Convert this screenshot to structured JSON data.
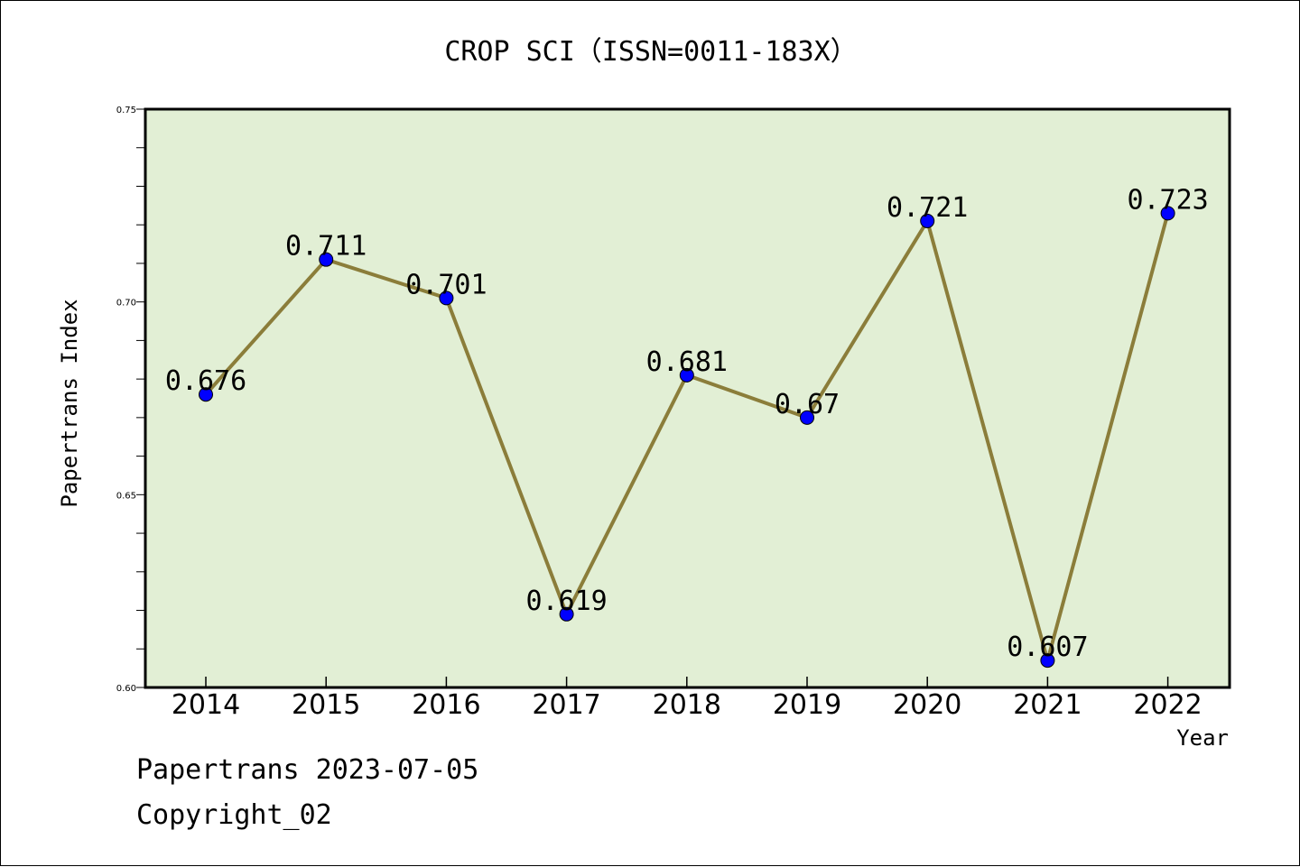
{
  "footer": {
    "line1": "Papertrans 2023-07-05",
    "line2": "Copyright_02"
  },
  "colors": {
    "plot_bg": "#e2efd5",
    "line": "#8b7d3a",
    "marker": "#0000ff",
    "axis": "#000000"
  },
  "chart_data": {
    "type": "line",
    "title": "CROP SCI（ISSN=0011-183X）",
    "xlabel": "Year",
    "ylabel": "Papertrans Index",
    "categories": [
      "2014",
      "2015",
      "2016",
      "2017",
      "2018",
      "2019",
      "2020",
      "2021",
      "2022"
    ],
    "series": [
      {
        "values": [
          0.676,
          0.711,
          0.701,
          0.619,
          0.681,
          0.67,
          0.721,
          0.607,
          0.723
        ],
        "data_labels": [
          "0.676",
          "0.711",
          "0.701",
          "0.619",
          "0.681",
          "0.67",
          "0.721",
          "0.607",
          "0.723"
        ]
      }
    ],
    "ylim": [
      0.6,
      0.75
    ],
    "y_ticks": [
      "0.60",
      "0.65",
      "0.70",
      "0.75"
    ],
    "y_tick_values": [
      0.6,
      0.65,
      0.7,
      0.75
    ],
    "y_minor_step": 0.01,
    "grid": false,
    "legend": "none"
  }
}
